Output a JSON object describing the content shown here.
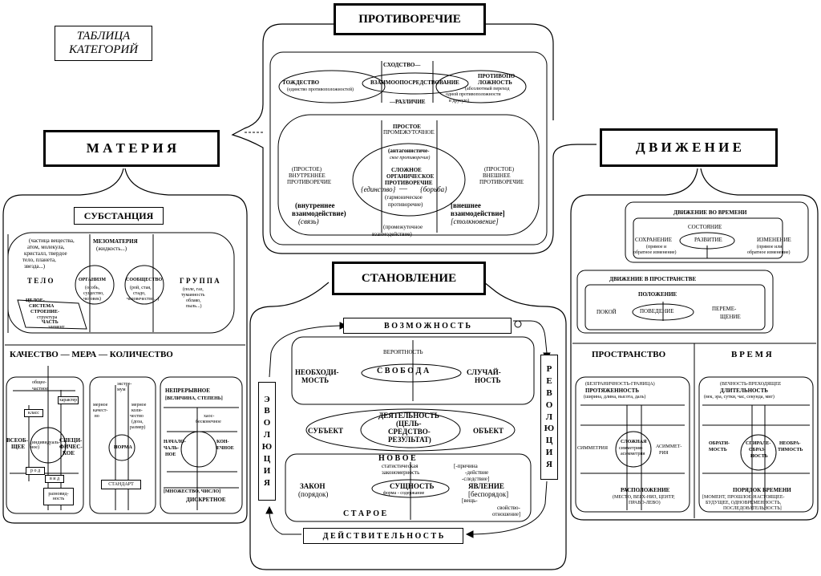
{
  "title": {
    "line1": "ТАБЛИЦА",
    "line2": "КАТЕГОРИЙ"
  },
  "headers": {
    "contradiction": "ПРОТИВОРЕЧИЕ",
    "matter": "М А Т Е Р И Я",
    "motion": "Д В И Ж Е Н И Е",
    "becoming": "СТАНОВЛЕНИЕ"
  },
  "contradiction": {
    "similarity": "СХОДСТВО—",
    "identity": "ТОЖДЕСТВО",
    "identity_note": "(единство противоположностей)",
    "mediation": "ВЗАИМООПОСРЕДСТВОВАНИЕ",
    "opposite_1": "ПРОТИВОПО-",
    "opposite_2": "ЛОЖНОСТЬ",
    "opposite_note_1": "(абсолютный переход",
    "opposite_note_2": "одной противоположности",
    "opposite_note_3": "в другую)",
    "difference": "—РАЗЛИЧИЕ",
    "simple_intermediate_1": "ПРОСТОЕ",
    "simple_intermediate_2": "ПРОМЕЖУТОЧНОЕ",
    "antagonistic": "(антагонистиче-",
    "antagonistic_note": "ское противоречие)",
    "complex_1": "СЛОЖНОЕ",
    "complex_2": "ОРГАНИЧЕСКОЕ",
    "complex_3": "ПРОТИВОРЕЧИЕ",
    "unity": "{единство}",
    "dash": "—",
    "struggle": "{борьба}",
    "harmonic_1": "(гармоническое",
    "harmonic_2": "противоречие)",
    "inner_simple_1": "(ПРОСТОЕ)",
    "inner_simple_2": "ВНУТРЕННЕЕ",
    "inner_simple_3": "ПРОТИВОРЕЧИЕ",
    "outer_simple_1": "(ПРОСТОЕ)",
    "outer_simple_2": "ВНЕШНЕЕ",
    "outer_simple_3": "ПРОТИВОРЕЧИЕ",
    "inner_inter_1": "(внутреннее",
    "inner_inter_2": "взаимодействие)",
    "inner_inter_3": "(связь)",
    "outer_inter_1": "[внешнее",
    "outer_inter_2": "взаимодействие]",
    "outer_inter_3": "[столкновение]",
    "inter_1": "(промежуточное",
    "inter_2": "взаимодействие)"
  },
  "matter": {
    "substance": "СУБСТАНЦИЯ",
    "particles_1": "(частица вещества,",
    "particles_2": "атом, молекула,",
    "particles_3": "кристалл, твердое",
    "particles_4": "тело, планета,",
    "particles_5": "звезда...)",
    "mesomatter_1": "МЕЗОМАТЕРИЯ",
    "mesomatter_2": "(жидкость...)",
    "body": "Т Е Л О",
    "organism": "ОРГАНИЗМ",
    "organism_note_1": "(особь,",
    "organism_note_2": "существо,",
    "organism_note_3": "человек)",
    "community": "СООБЩЕСТВО",
    "community_note_1": "(рой, стая,",
    "community_note_2": "стадо,",
    "community_note_3": "человечество...)",
    "group": "Г Р У П П А",
    "group_note_1": "(поле, газ,",
    "group_note_2": "туманность",
    "group_note_3": "облако,",
    "group_note_4": "пыль...)",
    "whole": "ЦЕЛОЕ-",
    "system": "СИСТЕМА",
    "structure_1": "СТРОЕНИЕ-",
    "structure_2": "структура",
    "part": "ЧАСТЬ",
    "element": "элемент",
    "qmq": "КАЧЕСТВО   —   МЕРА   —   КОЛИЧЕСТВО",
    "general": "общее-",
    "particular": "частное",
    "character": "характер",
    "class": "класс",
    "universal_1": "ВСЕОБ-",
    "universal_2": "ЩЕЕ",
    "special_1": "СПЕЦИ-",
    "special_2": "ФИЧЕС-",
    "special_3": "КОЕ",
    "individual": "(индивидуаль-ное)",
    "genus": "р о д",
    "species": "в и д",
    "variety_1": "разновид-",
    "variety_2": "ность",
    "extremum_1": "экстре-",
    "extremum_2": "мум",
    "measure_q_1": "мерное",
    "measure_q_2": "качест-",
    "measure_q_3": "во",
    "measure_n_1": "мерное",
    "measure_n_2": "коли-",
    "measure_n_3": "чество",
    "measure_n_4": "(доза,",
    "measure_n_5": "размер)",
    "norm": "НОРМА",
    "standard": "СТАНДАРТ",
    "continuous": "НЕПРЕРЫВНОЕ",
    "magnitude": "[ВЕЛИЧИНА, СТЕПЕНЬ]",
    "infinite_1": "хаос-",
    "infinite_2": "бесконечное",
    "beginning_1": "НАЧАЛО-",
    "beginning_2": "ЧАЛЬ-",
    "beginning_3": "НОЕ",
    "end_1": "КОН-",
    "end_2": "ЕЧНОЕ",
    "plurality": "[МНОЖЕСТВО, ЧИСЛО]",
    "discrete": "ДИСКРЕТНОЕ"
  },
  "motion": {
    "in_time": "ДВИЖЕНИЕ ВО ВРЕМЕНИ",
    "state": "СОСТОЯНИЕ",
    "preservation": "СОХРАНЕНИЕ",
    "preservation_note_1": "(прямое и",
    "preservation_note_2": "обратное изменение)",
    "development": "РАЗВИТИЕ",
    "change": "ИЗМЕНЕНИЕ",
    "change_note_1": "(прямое или",
    "change_note_2": "обратное изменение)",
    "in_space": "ДВИЖЕНИЕ В ПРОСТРАНСТВЕ",
    "position": "ПОЛОЖЕНИЕ",
    "rest": "ПОКОЙ",
    "behavior": "ПОВЕДЕНИЕ",
    "displacement_1": "ПЕРЕМЕ-",
    "displacement_2": "ЩЕНИЕ",
    "space": "ПРОСТРАНСТВО",
    "time": "В Р Е М Я",
    "boundless": "(БЕЗГРАНИЧНОСТЬ-ГРАНИЦА)",
    "extension": "ПРОТЯЖЕННОСТЬ",
    "extension_note": "(ширина, длина, высота, даль)",
    "symmetry": "СИММЕТРИЯ",
    "complex_sym_1": "СЛОЖНАЯ",
    "complex_sym_2": "симметрия-",
    "complex_sym_3": "асимметрия",
    "asymmetry_1": "АСИММЕТ-",
    "asymmetry_2": "РИЯ",
    "arrangement": "РАСПОЛОЖЕНИЕ",
    "arrangement_note_1": "(МЕСТО, ВЕРХ-НИЗ, ЦЕНТР,",
    "arrangement_note_2": "ПРАВО-ЛЕВО)",
    "eternity": "(ВЕЧНОСТЬ-ПРЕХОДЯЩЕЕ",
    "duration": "ДЛИТЕЛЬНОСТЬ",
    "duration_note": "(век, эра, сутки, час, секунда, миг)",
    "reversible_1": "ОБРАТИ-",
    "reversible_2": "МОСТЬ",
    "spiral_1": "СПИРАЛЕ-",
    "spiral_2": "ОБРАЗ-",
    "spiral_3": "НОСТЬ",
    "irreversible_1": "НЕОБРА-",
    "irreversible_2": "ТИМОСТЬ",
    "time_order": "ПОРЯДОК ВРЕМЕНИ",
    "time_order_note_1": "[МОМЕНТ, ПРОШЛОЕ-НАСТОЯЩЕЕ-",
    "time_order_note_2": "БУДУЩЕЕ, ОДНОВРЕМЕННОСТЬ,",
    "time_order_note_3": "ПОСЛЕДОВАТЕЛЬНОСТЬ]"
  },
  "becoming": {
    "possibility": "В О З М О Ж Н О С Т Ь",
    "probability": "ВЕРОЯТНОСТЬ",
    "necessity_1": "НЕОБХОДИ-",
    "necessity_2": "МОСТЬ",
    "freedom": "С В О Б О Д А",
    "chance_1": "СЛУЧАЙ-",
    "chance_2": "НОСТЬ",
    "activity_1": "ДЕЯТЕЛЬНОСТЬ",
    "activity_2": "(ЦЕЛЬ-",
    "activity_3": "СРЕДСТВО-",
    "activity_4": "РЕЗУЛЬТАТ)",
    "subject": "СУБЪЕКТ",
    "object": "ОБЪЕКТ",
    "new": "Н О В О Е",
    "statistical_1": "статистическая",
    "statistical_2": "закономерность",
    "cause_1": "[-причина",
    "cause_2": "-действие",
    "cause_3": "-следствие]",
    "law_1": "ЗАКОН",
    "law_2": "(порядок)",
    "essence": "СУЩНОСТЬ",
    "form_content": "форма - содержание",
    "phenomenon": "ЯВЛЕНИЕ",
    "disorder": "[беспорядок]",
    "thing": "[вещь-",
    "property_1": "свойство-",
    "property_2": "отношение]",
    "old": "С Т А Р О Е",
    "reality": "Д Е Й С Т В И Т Е Л Ь Н О С Т Ь",
    "evolution": [
      "Э",
      "В",
      "О",
      "Л",
      "Ю",
      "Ц",
      "И",
      "Я"
    ],
    "revolution": [
      "Р",
      "Е",
      "В",
      "О",
      "Л",
      "Ю",
      "Ц",
      "И",
      "Я"
    ]
  }
}
